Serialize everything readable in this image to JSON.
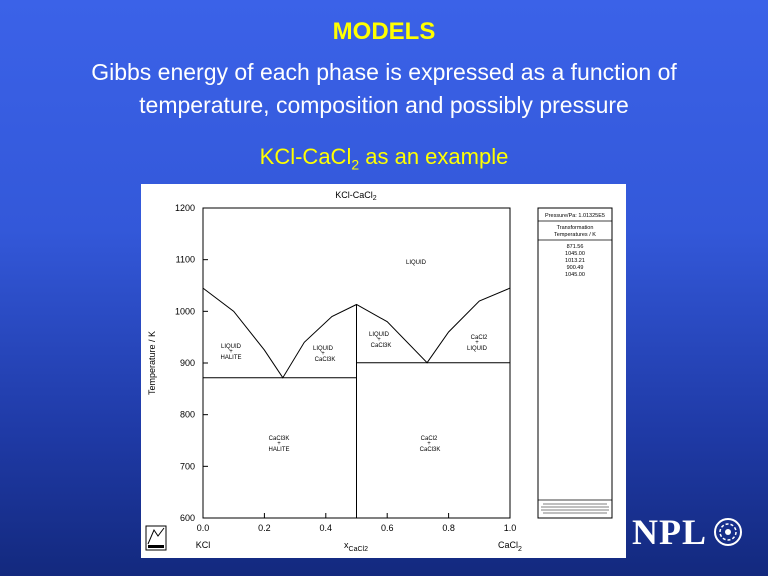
{
  "slide": {
    "title": "MODELS",
    "subtitle": "Gibbs energy of each phase is expressed as a function of temperature, composition and possibly pressure",
    "example_main": "KCl-CaCl",
    "example_sub": "2",
    "example_tail": " as an example"
  },
  "diagram": {
    "chart_title_main": "KCl-CaCl",
    "chart_title_sub": "2",
    "y_label": "Temperature / K",
    "x_label_main": "x",
    "x_label_sub": "CaCl2",
    "x_left_component": "KCl",
    "x_right_main": "CaCl",
    "x_right_sub": "2",
    "y_ticks": [
      "600",
      "700",
      "800",
      "900",
      "1000",
      "1100",
      "1200"
    ],
    "x_ticks": [
      "0.0",
      "0.2",
      "0.4",
      "0.6",
      "0.8",
      "1.0"
    ],
    "region_labels": {
      "liquid": "LIQUID",
      "liq_halite_1": "LIQUID",
      "liq_halite_plus": "+",
      "liq_halite_2": "HALITE",
      "liq_cacl3k_1": "LIQUID",
      "liq_cacl3k_plus": "+",
      "liq_cacl3k_2": "CaCl3K",
      "liq_cacl3k_b_1": "LIQUID",
      "liq_cacl3k_b_plus": "+",
      "liq_cacl3k_b_2": "CaCl3K",
      "cacl2_liq_1": "CaCl2",
      "cacl2_liq_plus": "+",
      "cacl2_liq_2": "LIQUID",
      "cacl3k_halite_1": "CaCl3K",
      "cacl3k_halite_plus": "+",
      "cacl3k_halite_2": "HALITE",
      "cacl2_cacl3k_1": "CaCl2",
      "cacl2_cacl3k_plus": "+",
      "cacl2_cacl3k_2": "CaCl3K"
    },
    "legend": {
      "pressure": "Pressure/Pa: 1.01325E5",
      "heading_1": "Transformation",
      "heading_2": "Temperatures / K",
      "temps": [
        "871.56",
        "1045.00",
        "1013.21",
        "900.49",
        "1045.00"
      ]
    }
  },
  "logo": {
    "text": "NPL"
  },
  "chart_data": {
    "type": "phase-diagram",
    "title": "KCl-CaCl2",
    "xlabel": "x CaCl2",
    "ylabel": "Temperature / K",
    "xlim": [
      0,
      1
    ],
    "ylim": [
      600,
      1200
    ],
    "liquidus": [
      {
        "x": 0.0,
        "y": 1045
      },
      {
        "x": 0.1,
        "y": 1000
      },
      {
        "x": 0.2,
        "y": 925
      },
      {
        "x": 0.26,
        "y": 871.56
      },
      {
        "x": 0.33,
        "y": 940
      },
      {
        "x": 0.42,
        "y": 990
      },
      {
        "x": 0.5,
        "y": 1013.21
      },
      {
        "x": 0.6,
        "y": 980
      },
      {
        "x": 0.73,
        "y": 900.49
      },
      {
        "x": 0.8,
        "y": 960
      },
      {
        "x": 0.9,
        "y": 1020
      },
      {
        "x": 1.0,
        "y": 1045
      }
    ],
    "invariants": [
      {
        "y": 871.56,
        "x_from": 0.0,
        "x_to": 0.5
      },
      {
        "y": 900.49,
        "x_from": 0.5,
        "x_to": 1.0
      }
    ],
    "compound_line": {
      "x": 0.5,
      "y_from": 600,
      "y_to": 1013.21
    }
  }
}
